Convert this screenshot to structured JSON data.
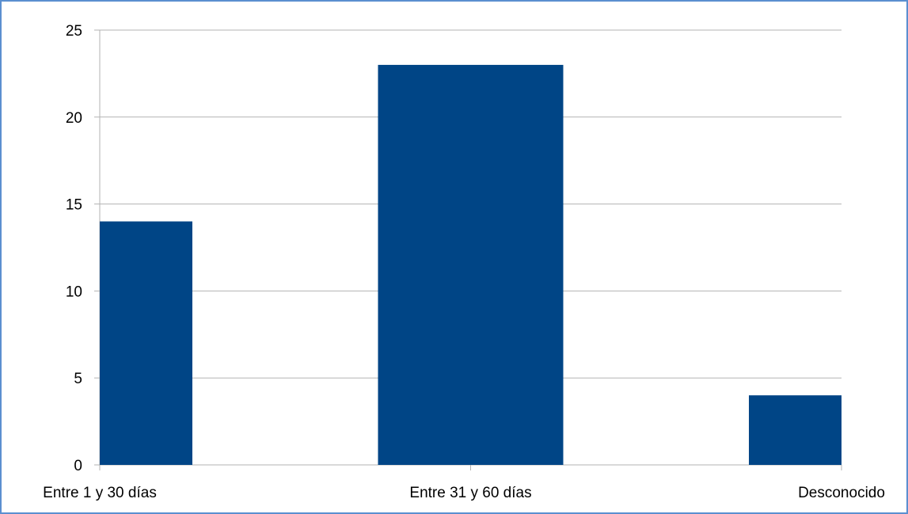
{
  "chart_data": {
    "type": "bar",
    "categories": [
      "Entre 1 y 30 días",
      "Entre 31 y 60 días",
      "Desconocido"
    ],
    "values": [
      14,
      23,
      4
    ],
    "ylim": [
      0,
      25
    ],
    "yticks": [
      0,
      5,
      10,
      15,
      20,
      25
    ],
    "grid": true,
    "legend": "none",
    "title": "",
    "xlabel": "",
    "ylabel": ""
  },
  "colors": {
    "bar": "#004586",
    "grid": "#b3b3b3",
    "axis": "#b3b3b3",
    "frame": "#5b8fd0"
  }
}
